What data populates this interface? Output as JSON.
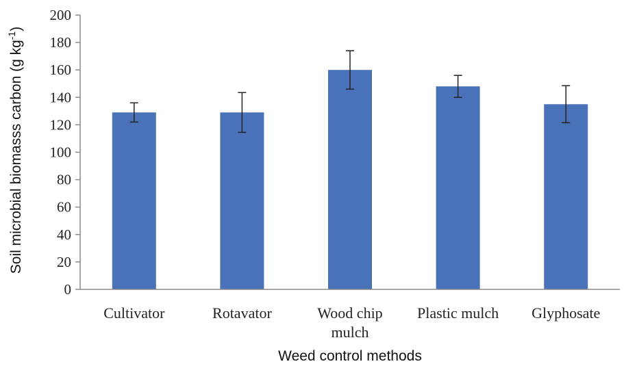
{
  "chart_data": {
    "type": "bar",
    "categories": [
      "Cultivator",
      "Rotavator",
      "Wood chip mulch",
      "Plastic mulch",
      "Glyphosate"
    ],
    "category_lines": [
      [
        "Cultivator"
      ],
      [
        "Rotavator"
      ],
      [
        "Wood chip",
        "mulch"
      ],
      [
        "Plastic mulch"
      ],
      [
        "Glyphosate"
      ]
    ],
    "values": [
      129,
      129,
      160,
      148,
      135
    ],
    "errors": [
      7,
      14.5,
      14,
      8,
      13.5
    ],
    "xlabel": "Weed control methods",
    "ylabel": "Soil microbial biomasss carbon (g kg",
    "ylabel_sup": "-1",
    "ylabel_close": ")",
    "ylim": [
      0,
      200
    ],
    "yticks": [
      0,
      20,
      40,
      60,
      80,
      100,
      120,
      140,
      160,
      180,
      200
    ],
    "bar_color": "#4a72b9",
    "grid": false
  }
}
